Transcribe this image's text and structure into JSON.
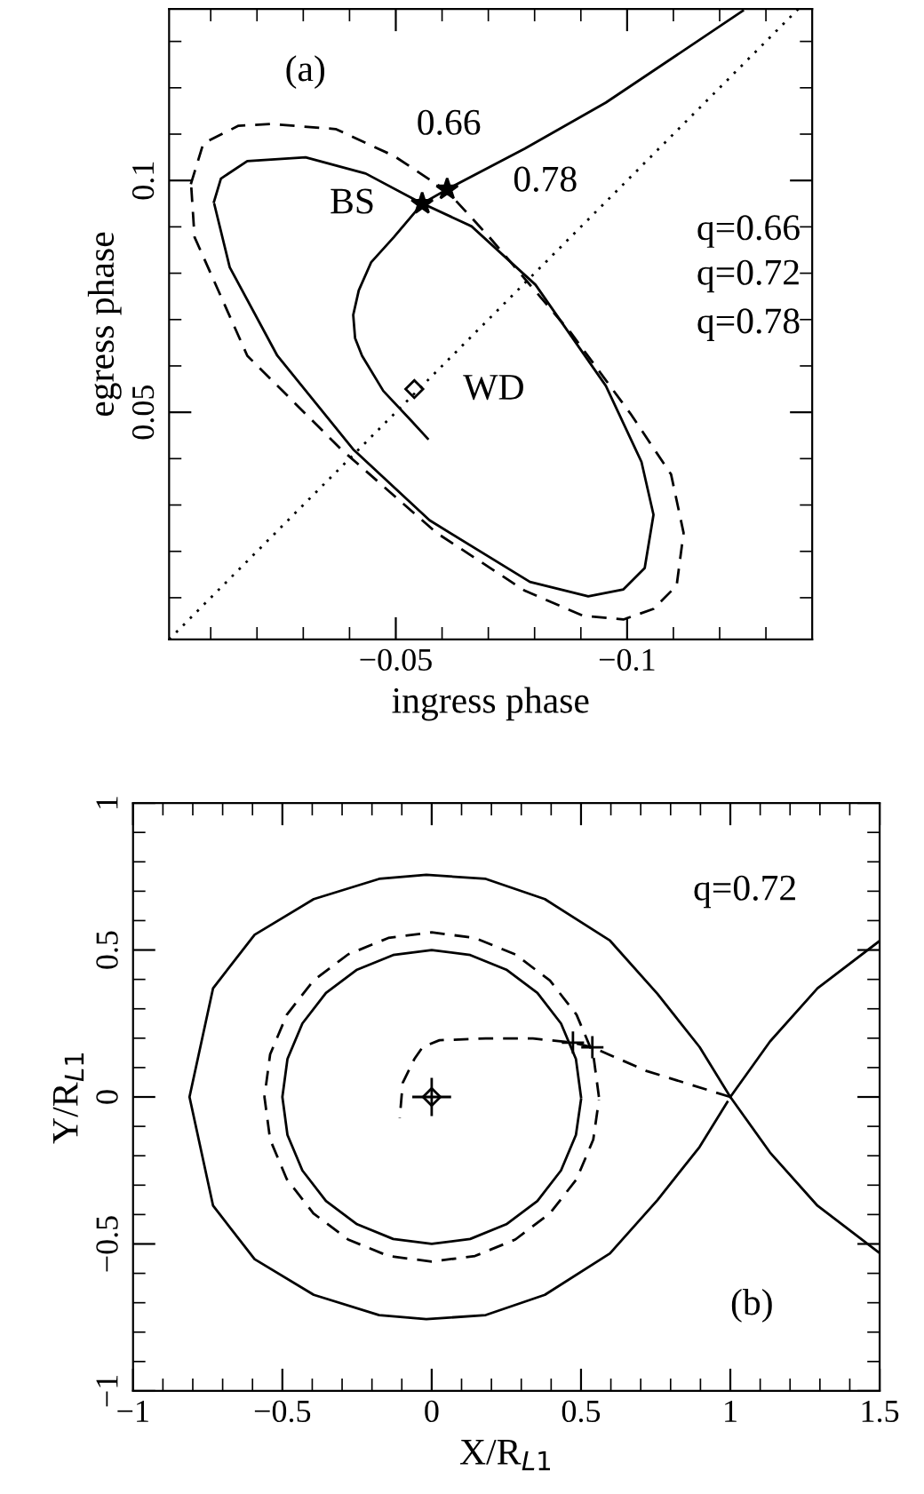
{
  "chart_data": [
    {
      "type": "line",
      "xlabel": "ingress phase",
      "ylabel": "egress phase",
      "xlim": [
        -0.001,
        -0.14
      ],
      "ylim": [
        0.001,
        0.137
      ],
      "xticks": [
        {
          "value": -0.01,
          "label": null
        },
        {
          "value": -0.02,
          "label": null
        },
        {
          "value": -0.03,
          "label": null
        },
        {
          "value": -0.04,
          "label": null
        },
        {
          "value": -0.05,
          "label": "−0.05"
        },
        {
          "value": -0.06,
          "label": null
        },
        {
          "value": -0.07,
          "label": null
        },
        {
          "value": -0.08,
          "label": null
        },
        {
          "value": -0.09,
          "label": null
        },
        {
          "value": -0.1,
          "label": "−0.1"
        },
        {
          "value": -0.11,
          "label": null
        },
        {
          "value": -0.12,
          "label": null
        },
        {
          "value": -0.13,
          "label": null
        }
      ],
      "yticks": [
        {
          "value": 0.01,
          "label": null
        },
        {
          "value": 0.02,
          "label": null
        },
        {
          "value": 0.03,
          "label": null
        },
        {
          "value": 0.04,
          "label": null
        },
        0.05,
        {
          "value": 0.06,
          "label": null
        },
        {
          "value": 0.07,
          "label": null
        },
        {
          "value": 0.08,
          "label": null
        },
        {
          "value": 0.09,
          "label": null
        },
        0.1,
        {
          "value": 0.11,
          "label": null
        },
        {
          "value": 0.12,
          "label": null
        },
        {
          "value": 0.13,
          "label": null
        }
      ],
      "series": [
        {
          "line_style": "dotted",
          "color": "#000000",
          "x": [
            -0.001,
            -0.137
          ],
          "values": [
            0.001,
            0.137
          ]
        },
        {
          "line_style": "solid",
          "color": "#000000",
          "x": [
            -0.0107,
            -0.0122,
            -0.0179,
            -0.0305,
            -0.0435,
            -0.055,
            -0.0664,
            -0.0802,
            -0.0954,
            -0.1031,
            -0.1057,
            -0.1038,
            -0.0992,
            -0.0916,
            -0.079,
            -0.0573,
            -0.0408,
            -0.0244,
            -0.0141,
            -0.0108
          ],
          "values": [
            0.0954,
            0.1004,
            0.1042,
            0.105,
            0.1015,
            0.0954,
            0.0901,
            0.0775,
            0.0557,
            0.0393,
            0.0279,
            0.0164,
            0.0118,
            0.0103,
            0.0134,
            0.0267,
            0.042,
            0.0622,
            0.0813,
            0.0948
          ]
        },
        {
          "line_style": "dashed",
          "color": "#000000",
          "x": [
            -0.0057,
            -0.0084,
            -0.016,
            -0.0229,
            -0.037,
            -0.0496,
            -0.0611,
            -0.0702,
            -0.0878,
            -0.1008,
            -0.1095,
            -0.1122,
            -0.1107,
            -0.1057,
            -0.0992,
            -0.0905,
            -0.0779,
            -0.0588,
            -0.0382,
            -0.0179,
            -0.0065,
            -0.0058
          ],
          "values": [
            0.0992,
            0.108,
            0.1118,
            0.1122,
            0.1111,
            0.1053,
            0.0977,
            0.0878,
            0.0672,
            0.0496,
            0.0366,
            0.024,
            0.0126,
            0.0076,
            0.0053,
            0.0061,
            0.0115,
            0.024,
            0.042,
            0.0622,
            0.0878,
            0.0985
          ]
        },
        {
          "line_style": "solid",
          "color": "#000000",
          "x": [
            -0.125,
            -0.0954,
            -0.0779,
            -0.0611,
            -0.0557,
            -0.0496,
            -0.0447,
            -0.042,
            -0.0408,
            -0.0412,
            -0.0427,
            -0.0473,
            -0.0534,
            -0.0569
          ],
          "values": [
            0.1366,
            0.1168,
            0.1069,
            0.0981,
            0.095,
            0.0878,
            0.0824,
            0.0763,
            0.071,
            0.066,
            0.0622,
            0.0546,
            0.0481,
            0.0443
          ]
        },
        {
          "type": "scatter",
          "marker": "star",
          "color": "#000000",
          "x": [
            -0.0557,
            -0.0611
          ],
          "values": [
            0.095,
            0.0981
          ]
        },
        {
          "type": "scatter",
          "marker": "diamond",
          "color": "#000000",
          "x": [
            -0.054
          ],
          "values": [
            0.055
          ]
        }
      ],
      "annotations": [
        "(a)",
        "q=0.66",
        "q=0.72",
        "q=0.78",
        "BS",
        "WD",
        "0.66",
        "0.78"
      ]
    },
    {
      "type": "line",
      "xlabel": "X/R$_{L1}$",
      "ylabel": "Y/R$_{L1}$",
      "xlim": [
        -1,
        1.5
      ],
      "ylim": [
        -1,
        1
      ],
      "xticks": [
        {
          "value": -1,
          "label": "−1"
        },
        {
          "value": -0.9,
          "label": null
        },
        {
          "value": -0.8,
          "label": null
        },
        {
          "value": -0.7,
          "label": null
        },
        {
          "value": -0.6,
          "label": null
        },
        {
          "value": -0.5,
          "label": "−0.5"
        },
        {
          "value": -0.4,
          "label": null
        },
        {
          "value": -0.3,
          "label": null
        },
        {
          "value": -0.2,
          "label": null
        },
        {
          "value": -0.1,
          "label": null
        },
        0,
        {
          "value": 0.1,
          "label": null
        },
        {
          "value": 0.2,
          "label": null
        },
        {
          "value": 0.3,
          "label": null
        },
        {
          "value": 0.4,
          "label": null
        },
        0.5,
        {
          "value": 0.6,
          "label": null
        },
        {
          "value": 0.7,
          "label": null
        },
        {
          "value": 0.8,
          "label": null
        },
        {
          "value": 0.9,
          "label": null
        },
        1,
        {
          "value": 1.1,
          "label": null
        },
        {
          "value": 1.2,
          "label": null
        },
        {
          "value": 1.3,
          "label": null
        },
        {
          "value": 1.4,
          "label": null
        },
        1.5
      ],
      "yticks": [
        {
          "value": -1,
          "label": "−1"
        },
        {
          "value": -0.9,
          "label": null
        },
        {
          "value": -0.8,
          "label": null
        },
        {
          "value": -0.7,
          "label": null
        },
        {
          "value": -0.6,
          "label": null
        },
        {
          "value": -0.5,
          "label": "−0.5"
        },
        {
          "value": -0.4,
          "label": null
        },
        {
          "value": -0.3,
          "label": null
        },
        {
          "value": -0.2,
          "label": null
        },
        {
          "value": -0.1,
          "label": null
        },
        0,
        {
          "value": 0.1,
          "label": null
        },
        {
          "value": 0.2,
          "label": null
        },
        {
          "value": 0.3,
          "label": null
        },
        {
          "value": 0.4,
          "label": null
        },
        0.5,
        {
          "value": 0.6,
          "label": null
        },
        {
          "value": 0.7,
          "label": null
        },
        {
          "value": 0.8,
          "label": null
        },
        {
          "value": 0.9,
          "label": null
        },
        1
      ],
      "series": [
        {
          "line_style": "solid",
          "color": "#000000",
          "x": [
            1.0,
            0.897,
            0.756,
            0.597,
            0.379,
            0.181,
            -0.018,
            -0.176,
            -0.395,
            -0.593,
            -0.732,
            -0.811,
            -0.732,
            -0.593,
            -0.395,
            -0.176,
            -0.018,
            0.181,
            0.379,
            0.597,
            0.756,
            0.897,
            0.99
          ],
          "values": [
            0.0,
            0.17,
            0.351,
            0.532,
            0.673,
            0.742,
            0.756,
            0.742,
            0.673,
            0.552,
            0.37,
            0.0,
            -0.37,
            -0.552,
            -0.673,
            -0.742,
            -0.756,
            -0.742,
            -0.673,
            -0.532,
            -0.351,
            -0.17,
            -0.017
          ]
        },
        {
          "line_style": "solid",
          "color": "#000000",
          "x": [
            1.5,
            1.292,
            1.133,
            1.0,
            1.133,
            1.292,
            1.5
          ],
          "values": [
            0.531,
            0.37,
            0.189,
            0.0,
            -0.189,
            -0.37,
            -0.531
          ]
        },
        {
          "line_style": "solid",
          "color": "#000000",
          "x": [
            0.5,
            0.483,
            0.433,
            0.354,
            0.25,
            0.129,
            0,
            -0.129,
            -0.25,
            -0.354,
            -0.433,
            -0.483,
            -0.5,
            -0.483,
            -0.433,
            -0.354,
            -0.25,
            -0.129,
            0,
            0.129,
            0.25,
            0.354,
            0.433,
            0.483,
            0.5
          ],
          "values": [
            0,
            0.129,
            0.25,
            0.354,
            0.433,
            0.483,
            0.5,
            0.483,
            0.433,
            0.354,
            0.25,
            0.129,
            0,
            -0.129,
            -0.25,
            -0.354,
            -0.433,
            -0.483,
            -0.5,
            -0.483,
            -0.433,
            -0.354,
            -0.25,
            -0.129,
            -0.009
          ]
        },
        {
          "line_style": "dashed",
          "color": "#000000",
          "x": [
            0.56,
            0.541,
            0.485,
            0.396,
            0.28,
            0.145,
            0,
            -0.145,
            -0.28,
            -0.396,
            -0.485,
            -0.541,
            -0.56,
            -0.541,
            -0.485,
            -0.396,
            -0.28,
            -0.145,
            0,
            0.145,
            0.28,
            0.396,
            0.485,
            0.541,
            0.56
          ],
          "values": [
            0,
            0.145,
            0.28,
            0.396,
            0.485,
            0.541,
            0.56,
            0.541,
            0.485,
            0.396,
            0.28,
            0.145,
            0,
            -0.145,
            -0.28,
            -0.396,
            -0.485,
            -0.541,
            -0.56,
            -0.541,
            -0.485,
            -0.396,
            -0.28,
            -0.145,
            -0.01
          ]
        },
        {
          "line_style": "dashed",
          "color": "#000000",
          "x": [
            1.0,
            0.718,
            0.538,
            0.473,
            0.339,
            0.181,
            0.026,
            -0.03,
            -0.058,
            -0.097,
            -0.107
          ],
          "values": [
            0.0,
            0.089,
            0.169,
            0.185,
            0.199,
            0.199,
            0.193,
            0.17,
            0.129,
            0.048,
            -0.072
          ]
        },
        {
          "type": "scatter",
          "marker": "cross",
          "color": "#000000",
          "x": [
            0.473,
            0.538
          ],
          "values": [
            0.185,
            0.169
          ]
        },
        {
          "type": "scatter",
          "marker": "diamond",
          "color": "#000000",
          "x": [
            0
          ],
          "values": [
            0
          ],
          "errors": [
            0.065
          ],
          "xerrors": [
            0.065
          ]
        }
      ],
      "annotations": [
        "q=0.72",
        "(b)"
      ]
    }
  ]
}
